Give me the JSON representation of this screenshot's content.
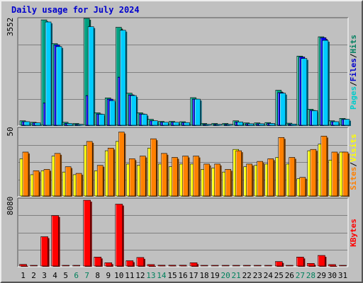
{
  "title": "Daily usage for July 2024",
  "chart_data": [
    {
      "type": "bar",
      "panel": "traffic",
      "categories": [
        "1",
        "2",
        "3",
        "4",
        "5",
        "6",
        "7",
        "8",
        "9",
        "10",
        "11",
        "12",
        "13",
        "14",
        "15",
        "16",
        "17",
        "18",
        "19",
        "20",
        "21",
        "22",
        "23",
        "24",
        "25",
        "26",
        "27",
        "28",
        "29",
        "30",
        "31"
      ],
      "y_max_label": "3552",
      "ylim": [
        0,
        3552
      ],
      "side_label_parts": [
        "Pages",
        "/",
        "Files",
        "/",
        "Hits"
      ],
      "side_label_colors": [
        "#00cccc",
        "#000000",
        "#0000cc",
        "#000000",
        "#008060"
      ],
      "series": [
        {
          "name": "Hits",
          "color": "#00a080",
          "values": [
            150,
            100,
            3550,
            2750,
            100,
            60,
            3600,
            420,
            920,
            3300,
            1080,
            420,
            200,
            130,
            130,
            120,
            930,
            60,
            60,
            60,
            150,
            80,
            80,
            90,
            1180,
            70,
            2330,
            540,
            2980,
            150,
            230
          ]
        },
        {
          "name": "Files",
          "color": "#0000ff",
          "values": [
            120,
            80,
            750,
            2710,
            60,
            30,
            1000,
            380,
            880,
            1620,
            1020,
            380,
            150,
            100,
            100,
            90,
            880,
            30,
            30,
            30,
            110,
            50,
            50,
            60,
            1100,
            40,
            2300,
            500,
            2950,
            120,
            200
          ]
        },
        {
          "name": "Pages",
          "color": "#00ccff",
          "values": [
            120,
            80,
            3480,
            2650,
            60,
            30,
            3320,
            370,
            830,
            3200,
            1000,
            370,
            150,
            100,
            100,
            90,
            880,
            30,
            30,
            30,
            110,
            50,
            50,
            60,
            1080,
            40,
            2250,
            490,
            2860,
            120,
            200
          ]
        }
      ],
      "weekend_days": [
        "6",
        "7",
        "13",
        "14",
        "20",
        "21",
        "27",
        "28"
      ],
      "weekend_color": "#00805c",
      "weekday_color": "#000000"
    },
    {
      "type": "bar",
      "panel": "visitors",
      "y_max_label": "50",
      "ylim": [
        0,
        50
      ],
      "side_label_parts": [
        "Sites",
        "/",
        "Visits"
      ],
      "side_label_colors": [
        "#ff8000",
        "#000000",
        "#ffff00"
      ],
      "series": [
        {
          "name": "Visits",
          "color": "#ffff00",
          "values": [
            28,
            16,
            19,
            30,
            18,
            16,
            38,
            19,
            34,
            41,
            24,
            23,
            36,
            24,
            22,
            24,
            24,
            20,
            21,
            18,
            35,
            22,
            23,
            24,
            29,
            24,
            13,
            34,
            39,
            27,
            33
          ]
        },
        {
          "name": "Sites",
          "color": "#ff8000",
          "values": [
            33,
            19,
            20,
            32,
            22,
            17,
            41,
            23,
            36,
            48,
            28,
            30,
            43,
            32,
            29,
            30,
            30,
            24,
            24,
            20,
            34,
            24,
            26,
            28,
            44,
            29,
            14,
            35,
            45,
            33,
            33
          ]
        }
      ]
    },
    {
      "type": "bar",
      "panel": "kbytes",
      "y_max_label": "8080",
      "ylim": [
        0,
        8080
      ],
      "side_label_parts": [
        "KBytes"
      ],
      "side_label_colors": [
        "#ff0000"
      ],
      "series": [
        {
          "name": "KBytes",
          "color": "#ff0000",
          "values": [
            200,
            30,
            3600,
            6200,
            30,
            30,
            8080,
            1100,
            400,
            7600,
            650,
            1050,
            180,
            100,
            100,
            100,
            400,
            30,
            30,
            30,
            30,
            30,
            30,
            80,
            550,
            30,
            1100,
            320,
            1300,
            180,
            30
          ]
        }
      ]
    }
  ]
}
